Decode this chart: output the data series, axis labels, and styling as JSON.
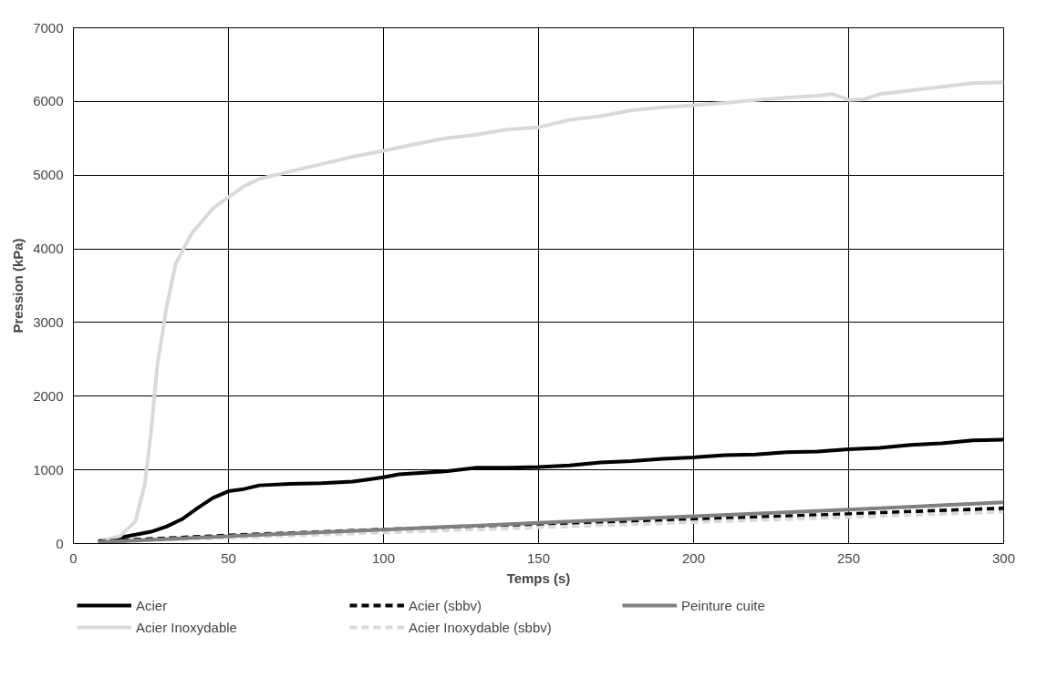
{
  "chart_data": {
    "type": "line",
    "xlabel": "Temps (s)",
    "ylabel": "Pression (kPa)",
    "xlim": [
      0,
      300
    ],
    "xticks": [
      0,
      50,
      100,
      150,
      200,
      250,
      300
    ],
    "ylim": [
      0,
      7000
    ],
    "yticks": [
      0,
      1000,
      2000,
      3000,
      4000,
      5000,
      6000,
      7000
    ],
    "grid": true,
    "legend": "bottom",
    "marker": "none",
    "series": [
      {
        "name": "Acier",
        "color": "#000000",
        "line_style": "solid",
        "x": [
          8,
          15,
          20,
          25,
          30,
          35,
          40,
          45,
          50,
          55,
          60,
          70,
          80,
          90,
          95,
          100,
          105,
          120,
          130,
          140,
          150,
          160,
          170,
          180,
          190,
          200,
          210,
          220,
          230,
          240,
          250,
          260,
          270,
          280,
          290,
          300
        ],
        "values": [
          30,
          80,
          120,
          160,
          230,
          330,
          480,
          620,
          710,
          740,
          790,
          810,
          820,
          840,
          870,
          900,
          940,
          980,
          1030,
          1030,
          1040,
          1060,
          1100,
          1120,
          1150,
          1170,
          1200,
          1210,
          1240,
          1250,
          1280,
          1300,
          1340,
          1360,
          1400,
          1410
        ]
      },
      {
        "name": "Acier Inoxydable",
        "color": "#d9d9d9",
        "line_style": "solid",
        "x": [
          8,
          15,
          20,
          23,
          25,
          27,
          30,
          33,
          38,
          45,
          50,
          55,
          60,
          70,
          80,
          90,
          100,
          110,
          120,
          130,
          140,
          150,
          160,
          170,
          180,
          190,
          200,
          210,
          220,
          230,
          240,
          245,
          250,
          255,
          260,
          270,
          280,
          290,
          300
        ],
        "values": [
          30,
          100,
          300,
          800,
          1500,
          2400,
          3200,
          3800,
          4200,
          4550,
          4700,
          4850,
          4950,
          5050,
          5150,
          5250,
          5330,
          5420,
          5500,
          5550,
          5620,
          5650,
          5750,
          5800,
          5880,
          5920,
          5950,
          5980,
          6020,
          6050,
          6080,
          6100,
          6020,
          6030,
          6100,
          6150,
          6200,
          6250,
          6260
        ]
      },
      {
        "name": "Acier (sbbv)",
        "color": "#000000",
        "line_style": "dashed",
        "x": [
          8,
          50,
          100,
          150,
          200,
          250,
          300
        ],
        "values": [
          30,
          110,
          190,
          260,
          330,
          400,
          480
        ]
      },
      {
        "name": "Acier Inoxydable (sbbv)",
        "color": "#d9d9d9",
        "line_style": "dashed",
        "x": [
          8,
          50,
          100,
          150,
          200,
          250,
          300
        ],
        "values": [
          20,
          80,
          150,
          220,
          290,
          360,
          430
        ]
      },
      {
        "name": "Peinture cuite",
        "color": "#808080",
        "line_style": "solid",
        "x": [
          8,
          50,
          100,
          150,
          200,
          250,
          300
        ],
        "values": [
          20,
          100,
          190,
          280,
          370,
          460,
          560
        ]
      }
    ]
  }
}
